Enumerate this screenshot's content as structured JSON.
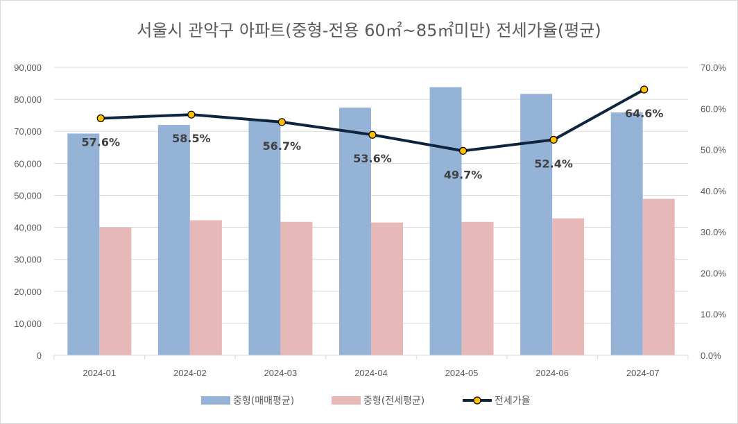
{
  "chart_data": {
    "type": "bar",
    "title": "서울시 관악구 아파트(중형-전용 60㎡~85㎡미만) 전세가율(평균)",
    "categories": [
      "2024-01",
      "2024-02",
      "2024-03",
      "2024-04",
      "2024-05",
      "2024-06",
      "2024-07"
    ],
    "series": [
      {
        "name": "중형(매매평균)",
        "kind": "bar",
        "axis": "left",
        "color": "#95b3d7",
        "values": [
          69300,
          72000,
          73400,
          77400,
          83800,
          81700,
          75900
        ]
      },
      {
        "name": "중형(전세평균)",
        "kind": "bar",
        "axis": "left",
        "color": "#e6b9b8",
        "values": [
          40000,
          42200,
          41700,
          41500,
          41700,
          42800,
          48900
        ]
      },
      {
        "name": "전세가율",
        "kind": "line",
        "axis": "right",
        "color": "#0f243e",
        "marker_color": "#ffc000",
        "values": [
          57.6,
          58.5,
          56.7,
          53.6,
          49.7,
          52.4,
          64.6
        ],
        "labels": [
          "57.6%",
          "58.5%",
          "56.7%",
          "53.6%",
          "49.7%",
          "52.4%",
          "64.6%"
        ]
      }
    ],
    "ylim_left": [
      0,
      90000
    ],
    "ylim_right": [
      0,
      70
    ],
    "yticks_left": [
      "0",
      "10,000",
      "20,000",
      "30,000",
      "40,000",
      "50,000",
      "60,000",
      "70,000",
      "80,000",
      "90,000"
    ],
    "yticks_right": [
      "0.0%",
      "10.0%",
      "20.0%",
      "30.0%",
      "40.0%",
      "50.0%",
      "60.0%",
      "70.0%"
    ],
    "grid": true,
    "legend_position": "bottom"
  }
}
